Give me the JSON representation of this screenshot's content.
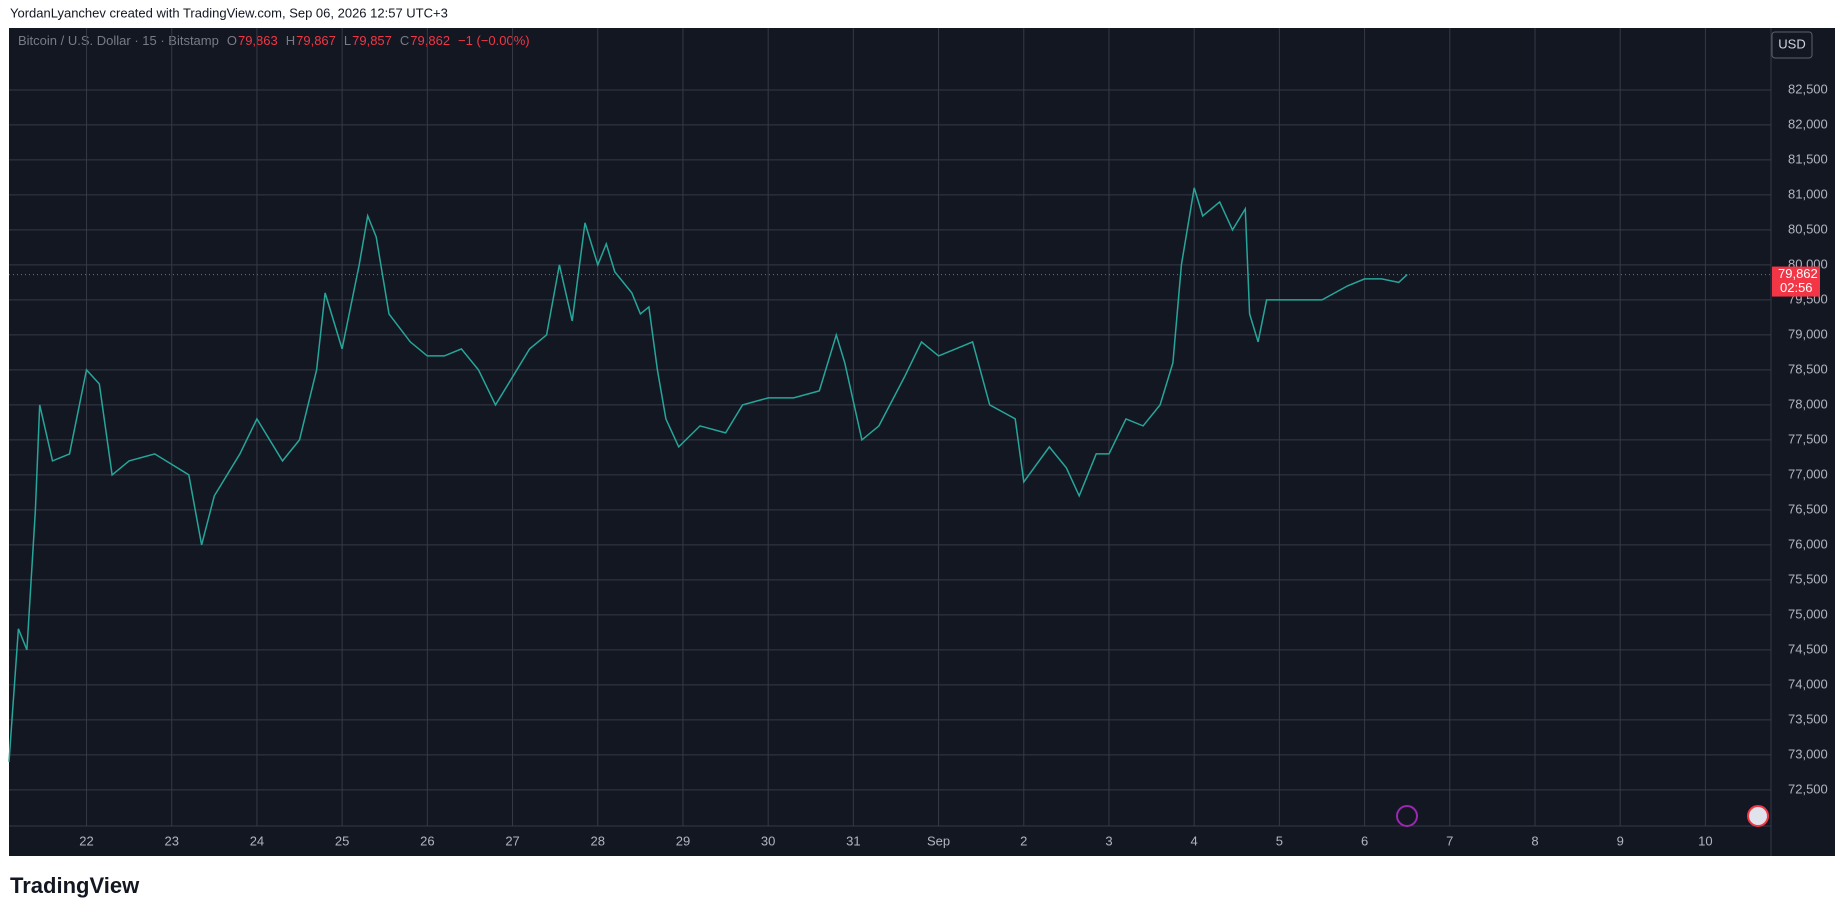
{
  "header": "YordanLyanchev created with TradingView.com, Sep 06, 2026 12:57 UTC+3",
  "footer": "TradingView",
  "currency": "USD",
  "legend": {
    "symbol": "Bitcoin / U.S. Dollar · 15 · Bitstamp",
    "o_label": "O",
    "o": "79,863",
    "h_label": "H",
    "h": "79,867",
    "l_label": "L",
    "l": "79,857",
    "c_label": "C",
    "c": "79,862",
    "change": "−1 (−0.00%)"
  },
  "chart_data": {
    "type": "line",
    "x": [
      21.09,
      21.2,
      21.3,
      21.4,
      21.45,
      21.6,
      21.8,
      22.0,
      22.15,
      22.3,
      22.5,
      22.8,
      23.2,
      23.35,
      23.5,
      23.8,
      24.0,
      24.3,
      24.5,
      24.7,
      24.8,
      25.0,
      25.2,
      25.3,
      25.4,
      25.55,
      25.8,
      26.0,
      26.2,
      26.4,
      26.6,
      26.8,
      27.0,
      27.2,
      27.4,
      27.55,
      27.7,
      27.85,
      28.0,
      28.1,
      28.2,
      28.4,
      28.5,
      28.6,
      28.7,
      28.8,
      28.95,
      29.2,
      29.5,
      29.7,
      30.0,
      30.3,
      30.6,
      30.8,
      30.9,
      31.1,
      31.3,
      31.6,
      31.8,
      32.0,
      32.2,
      32.4,
      32.6,
      32.9,
      33.0,
      33.3,
      33.5,
      33.65,
      33.85,
      34.0,
      34.2,
      34.4,
      34.6,
      34.75,
      34.85,
      35.0,
      35.1,
      35.3,
      35.45,
      35.6,
      35.65,
      35.75,
      35.85,
      36.2,
      36.5,
      36.8,
      37.0,
      37.2,
      37.4,
      37.5
    ],
    "series": [
      {
        "name": "BTCUSD",
        "color": "#26a69a",
        "values": [
          72900,
          74800,
          74500,
          76500,
          78000,
          77200,
          77300,
          78500,
          78300,
          77000,
          77200,
          77300,
          77000,
          76000,
          76700,
          77300,
          77800,
          77200,
          77500,
          78500,
          79600,
          78800,
          80000,
          80700,
          80400,
          79300,
          78900,
          78700,
          78700,
          78800,
          78500,
          78000,
          78400,
          78800,
          79000,
          80000,
          79200,
          80600,
          80000,
          80300,
          79900,
          79600,
          79300,
          79400,
          78500,
          77800,
          77400,
          77700,
          77600,
          78000,
          78100,
          78100,
          78200,
          79000,
          78600,
          77500,
          77700,
          78400,
          78900,
          78700,
          78800,
          78900,
          78000,
          77800,
          76900,
          77400,
          77100,
          76700,
          77300,
          77300,
          77800,
          77700,
          78000,
          78600,
          80000,
          81100,
          80700,
          80900,
          80500,
          80800,
          79300,
          78900,
          79500,
          79500,
          79500,
          79700,
          79800,
          79800,
          79750,
          79862
        ]
      }
    ],
    "last_price": {
      "value": 79862,
      "label": "79,862"
    },
    "countdown": "02:56",
    "xlim": [
      21.09,
      41.77
    ],
    "xticks": [
      22,
      23,
      24,
      25,
      26,
      27,
      28,
      29,
      30,
      31,
      {
        "value": 32,
        "label": "Sep"
      },
      {
        "value": 33,
        "label": "2"
      },
      {
        "value": 34,
        "label": "3"
      },
      {
        "value": 35,
        "label": "4"
      },
      {
        "value": 36,
        "label": "5"
      },
      {
        "value": 37,
        "label": "6"
      },
      {
        "value": 38,
        "label": "7"
      },
      {
        "value": 39,
        "label": "8"
      },
      {
        "value": 40,
        "label": "9"
      },
      {
        "value": 41,
        "label": "10"
      }
    ],
    "ylim": [
      71983,
      83385
    ],
    "yticks": [
      {
        "value": 72500,
        "label": "72,500"
      },
      {
        "value": 73000,
        "label": "73,000"
      },
      {
        "value": 73500,
        "label": "73,500"
      },
      {
        "value": 74000,
        "label": "74,000"
      },
      {
        "value": 74500,
        "label": "74,500"
      },
      {
        "value": 75000,
        "label": "75,000"
      },
      {
        "value": 75500,
        "label": "75,500"
      },
      {
        "value": 76000,
        "label": "76,000"
      },
      {
        "value": 76500,
        "label": "76,500"
      },
      {
        "value": 77000,
        "label": "77,000"
      },
      {
        "value": 77500,
        "label": "77,500"
      },
      {
        "value": 78000,
        "label": "78,000"
      },
      {
        "value": 78500,
        "label": "78,500"
      },
      {
        "value": 79000,
        "label": "79,000"
      },
      {
        "value": 79500,
        "label": "79,500"
      },
      {
        "value": 80000,
        "label": "80,000"
      },
      {
        "value": 80500,
        "label": "80,500"
      },
      {
        "value": 81000,
        "label": "81,000"
      },
      {
        "value": 81500,
        "label": "81,500"
      },
      {
        "value": 82000,
        "label": "82,000"
      },
      {
        "value": 82500,
        "label": "82,500"
      }
    ],
    "grid": true
  }
}
